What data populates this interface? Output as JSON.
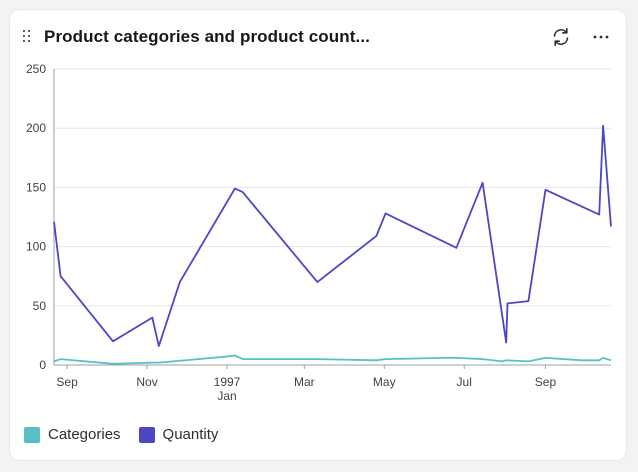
{
  "card": {
    "title": "Product categories and product count...",
    "refresh_icon": "refresh-icon",
    "more_icon": "more-horizontal-icon",
    "drag_icon": "drag-handle-icon"
  },
  "chart_data": {
    "type": "line",
    "title": "Product categories and product count...",
    "xlabel": "",
    "ylabel": "",
    "ylim": [
      0,
      250
    ],
    "yticks": [
      0,
      50,
      100,
      150,
      200,
      250
    ],
    "xticks": [
      {
        "x": "1996-09-01",
        "label": "Sep",
        "sublabel": ""
      },
      {
        "x": "1996-11-01",
        "label": "Nov",
        "sublabel": ""
      },
      {
        "x": "1997-01-01",
        "label": "1997",
        "sublabel": "Jan"
      },
      {
        "x": "1997-03-01",
        "label": "Mar",
        "sublabel": ""
      },
      {
        "x": "1997-05-01",
        "label": "May",
        "sublabel": ""
      },
      {
        "x": "1997-07-01",
        "label": "Jul",
        "sublabel": ""
      },
      {
        "x": "1997-09-01",
        "label": "Sep",
        "sublabel": ""
      }
    ],
    "xlim": [
      "1996-08-22",
      "1997-10-21"
    ],
    "grid": true,
    "legend": "bottom-left",
    "series": [
      {
        "name": "Categories",
        "color": "#56c1c5",
        "points": [
          [
            "1996-08-22",
            3
          ],
          [
            "1996-08-27",
            5
          ],
          [
            "1996-10-06",
            1
          ],
          [
            "1996-11-05",
            2
          ],
          [
            "1996-11-10",
            2
          ],
          [
            "1996-12-10",
            5
          ],
          [
            "1996-12-31",
            7
          ],
          [
            "1997-01-07",
            8
          ],
          [
            "1997-01-13",
            5
          ],
          [
            "1997-02-27",
            5
          ],
          [
            "1997-03-11",
            5
          ],
          [
            "1997-04-25",
            4
          ],
          [
            "1997-05-02",
            5
          ],
          [
            "1997-06-17",
            6
          ],
          [
            "1997-06-25",
            6
          ],
          [
            "1997-07-15",
            5
          ],
          [
            "1997-07-30",
            3
          ],
          [
            "1997-08-02",
            4
          ],
          [
            "1997-08-19",
            3
          ],
          [
            "1997-09-01",
            6
          ],
          [
            "1997-09-29",
            4
          ],
          [
            "1997-10-12",
            4
          ],
          [
            "1997-10-15",
            6
          ],
          [
            "1997-10-21",
            4
          ]
        ]
      },
      {
        "name": "Quantity",
        "color": "#4c46c8",
        "points": [
          [
            "1996-08-22",
            121
          ],
          [
            "1996-08-27",
            75
          ],
          [
            "1996-10-06",
            20
          ],
          [
            "1996-11-05",
            40
          ],
          [
            "1996-11-10",
            16
          ],
          [
            "1996-11-26",
            70
          ],
          [
            "1997-01-07",
            149
          ],
          [
            "1997-01-13",
            146
          ],
          [
            "1997-03-11",
            70
          ],
          [
            "1997-04-25",
            109
          ],
          [
            "1997-05-02",
            128
          ],
          [
            "1997-06-25",
            99
          ],
          [
            "1997-07-15",
            154
          ],
          [
            "1997-08-02",
            19
          ],
          [
            "1997-08-03",
            52
          ],
          [
            "1997-08-19",
            54
          ],
          [
            "1997-09-01",
            148
          ],
          [
            "1997-10-12",
            127
          ],
          [
            "1997-10-15",
            202
          ],
          [
            "1997-10-21",
            117
          ]
        ]
      }
    ]
  }
}
